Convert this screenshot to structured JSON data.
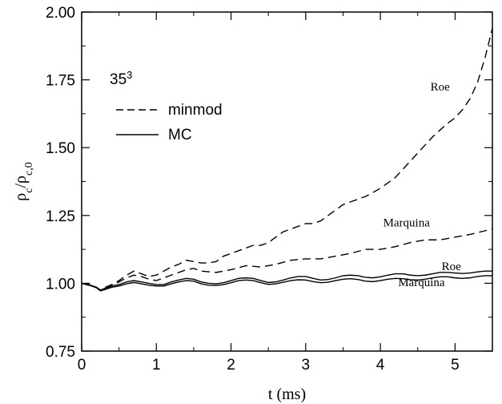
{
  "chart_data": {
    "type": "line",
    "title": "",
    "xlabel": "t (ms)",
    "ylabel_main": "ρ",
    "ylabel_main_sub": "c",
    "ylabel_denom": "ρ",
    "ylabel_denom_sub": "c,0",
    "xlim": [
      0,
      5.5
    ],
    "ylim": [
      0.75,
      2.0
    ],
    "xticks": [
      0,
      1,
      2,
      3,
      4,
      5
    ],
    "xtick_labels": [
      "0",
      "1",
      "2",
      "3",
      "4",
      "5"
    ],
    "yticks": [
      0.75,
      1.0,
      1.25,
      1.5,
      1.75,
      2.0
    ],
    "ytick_labels": [
      "0.75",
      "1.00",
      "1.25",
      "1.50",
      "1.75",
      "2.00"
    ],
    "grid": false,
    "resolution_label": "35",
    "resolution_sup": "3",
    "legend": [
      {
        "label": "minmod",
        "style": "dashed"
      },
      {
        "label": "MC",
        "style": "solid"
      }
    ],
    "annotations": [
      {
        "text": "Roe",
        "x": 4.8,
        "y": 1.71
      },
      {
        "text": "Marquina",
        "x": 4.35,
        "y": 1.21
      },
      {
        "text": "Roe",
        "x": 4.95,
        "y": 1.048
      },
      {
        "text": "Marquina",
        "x": 4.55,
        "y": 0.99
      }
    ],
    "series": [
      {
        "limiter": "minmod",
        "solver": "Roe",
        "style": "dashed",
        "x": [
          0,
          0.1,
          0.2,
          0.25,
          0.3,
          0.4,
          0.5,
          0.6,
          0.7,
          0.8,
          0.9,
          1.0,
          1.1,
          1.2,
          1.3,
          1.4,
          1.5,
          1.6,
          1.7,
          1.8,
          1.9,
          2.0,
          2.1,
          2.2,
          2.3,
          2.4,
          2.5,
          2.6,
          2.7,
          2.8,
          2.9,
          3.0,
          3.1,
          3.2,
          3.3,
          3.4,
          3.5,
          3.6,
          3.7,
          3.8,
          3.9,
          4.0,
          4.1,
          4.2,
          4.3,
          4.4,
          4.5,
          4.6,
          4.7,
          4.8,
          4.9,
          5.0,
          5.1,
          5.2,
          5.3,
          5.4,
          5.5
        ],
        "y": [
          1.0,
          0.995,
          0.985,
          0.975,
          0.983,
          0.995,
          1.01,
          1.03,
          1.045,
          1.035,
          1.025,
          1.03,
          1.045,
          1.06,
          1.07,
          1.085,
          1.08,
          1.075,
          1.075,
          1.08,
          1.1,
          1.11,
          1.12,
          1.13,
          1.14,
          1.14,
          1.15,
          1.17,
          1.19,
          1.2,
          1.21,
          1.22,
          1.22,
          1.23,
          1.25,
          1.27,
          1.29,
          1.3,
          1.31,
          1.32,
          1.335,
          1.35,
          1.37,
          1.39,
          1.42,
          1.45,
          1.48,
          1.51,
          1.54,
          1.565,
          1.59,
          1.61,
          1.64,
          1.68,
          1.74,
          1.83,
          1.94
        ]
      },
      {
        "limiter": "minmod",
        "solver": "Marquina",
        "style": "dashed",
        "x": [
          0,
          0.2,
          0.25,
          0.3,
          0.4,
          0.5,
          0.6,
          0.7,
          0.8,
          0.9,
          1.0,
          1.2,
          1.4,
          1.5,
          1.6,
          1.8,
          2.0,
          2.2,
          2.4,
          2.6,
          2.8,
          3.0,
          3.2,
          3.4,
          3.6,
          3.8,
          4.0,
          4.2,
          4.4,
          4.6,
          4.8,
          5.0,
          5.2,
          5.5
        ],
        "y": [
          1.0,
          0.985,
          0.975,
          0.98,
          0.99,
          1.005,
          1.02,
          1.03,
          1.025,
          1.015,
          1.01,
          1.03,
          1.05,
          1.055,
          1.045,
          1.04,
          1.05,
          1.065,
          1.06,
          1.07,
          1.085,
          1.09,
          1.09,
          1.1,
          1.11,
          1.125,
          1.125,
          1.135,
          1.15,
          1.16,
          1.16,
          1.17,
          1.18,
          1.2
        ]
      },
      {
        "limiter": "MC",
        "solver": "Roe",
        "style": "solid",
        "x": [
          0,
          0.1,
          0.2,
          0.25,
          0.3,
          0.4,
          0.5,
          0.6,
          0.7,
          0.8,
          0.9,
          1.0,
          1.1,
          1.2,
          1.3,
          1.4,
          1.5,
          1.6,
          1.7,
          1.8,
          1.9,
          2.0,
          2.1,
          2.2,
          2.3,
          2.4,
          2.5,
          2.6,
          2.7,
          2.8,
          2.9,
          3.0,
          3.1,
          3.2,
          3.3,
          3.4,
          3.5,
          3.6,
          3.7,
          3.8,
          3.9,
          4.0,
          4.1,
          4.2,
          4.3,
          4.4,
          4.5,
          4.6,
          4.7,
          4.8,
          4.9,
          5.0,
          5.1,
          5.2,
          5.3,
          5.4,
          5.5
        ],
        "y": [
          1.0,
          0.995,
          0.985,
          0.975,
          0.98,
          0.99,
          0.995,
          1.005,
          1.01,
          1.005,
          1.0,
          0.995,
          0.995,
          1.005,
          1.012,
          1.018,
          1.015,
          1.005,
          1.0,
          0.998,
          1.002,
          1.01,
          1.018,
          1.02,
          1.018,
          1.01,
          1.003,
          1.005,
          1.012,
          1.02,
          1.025,
          1.025,
          1.018,
          1.012,
          1.014,
          1.02,
          1.028,
          1.03,
          1.028,
          1.022,
          1.02,
          1.024,
          1.03,
          1.035,
          1.035,
          1.03,
          1.028,
          1.03,
          1.035,
          1.04,
          1.04,
          1.038,
          1.036,
          1.038,
          1.042,
          1.045,
          1.045
        ]
      },
      {
        "limiter": "MC",
        "solver": "Marquina",
        "style": "solid",
        "x": [
          0,
          0.1,
          0.2,
          0.25,
          0.3,
          0.4,
          0.5,
          0.6,
          0.7,
          0.8,
          0.9,
          1.0,
          1.1,
          1.2,
          1.3,
          1.4,
          1.5,
          1.6,
          1.7,
          1.8,
          1.9,
          2.0,
          2.1,
          2.2,
          2.3,
          2.4,
          2.5,
          2.6,
          2.7,
          2.8,
          2.9,
          3.0,
          3.1,
          3.2,
          3.3,
          3.4,
          3.5,
          3.6,
          3.7,
          3.8,
          3.9,
          4.0,
          4.1,
          4.2,
          4.3,
          4.4,
          4.5,
          4.6,
          4.7,
          4.8,
          4.9,
          5.0,
          5.1,
          5.2,
          5.3,
          5.4,
          5.5
        ],
        "y": [
          1.0,
          0.993,
          0.983,
          0.972,
          0.976,
          0.985,
          0.99,
          0.998,
          1.003,
          0.998,
          0.993,
          0.99,
          0.99,
          0.998,
          1.005,
          1.01,
          1.008,
          0.998,
          0.993,
          0.992,
          0.995,
          1.002,
          1.01,
          1.012,
          1.01,
          1.002,
          0.996,
          0.998,
          1.004,
          1.01,
          1.013,
          1.012,
          1.006,
          1.002,
          1.004,
          1.01,
          1.015,
          1.017,
          1.014,
          1.008,
          1.006,
          1.01,
          1.015,
          1.018,
          1.017,
          1.013,
          1.012,
          1.015,
          1.02,
          1.024,
          1.024,
          1.02,
          1.018,
          1.02,
          1.025,
          1.028,
          1.028
        ]
      }
    ]
  }
}
